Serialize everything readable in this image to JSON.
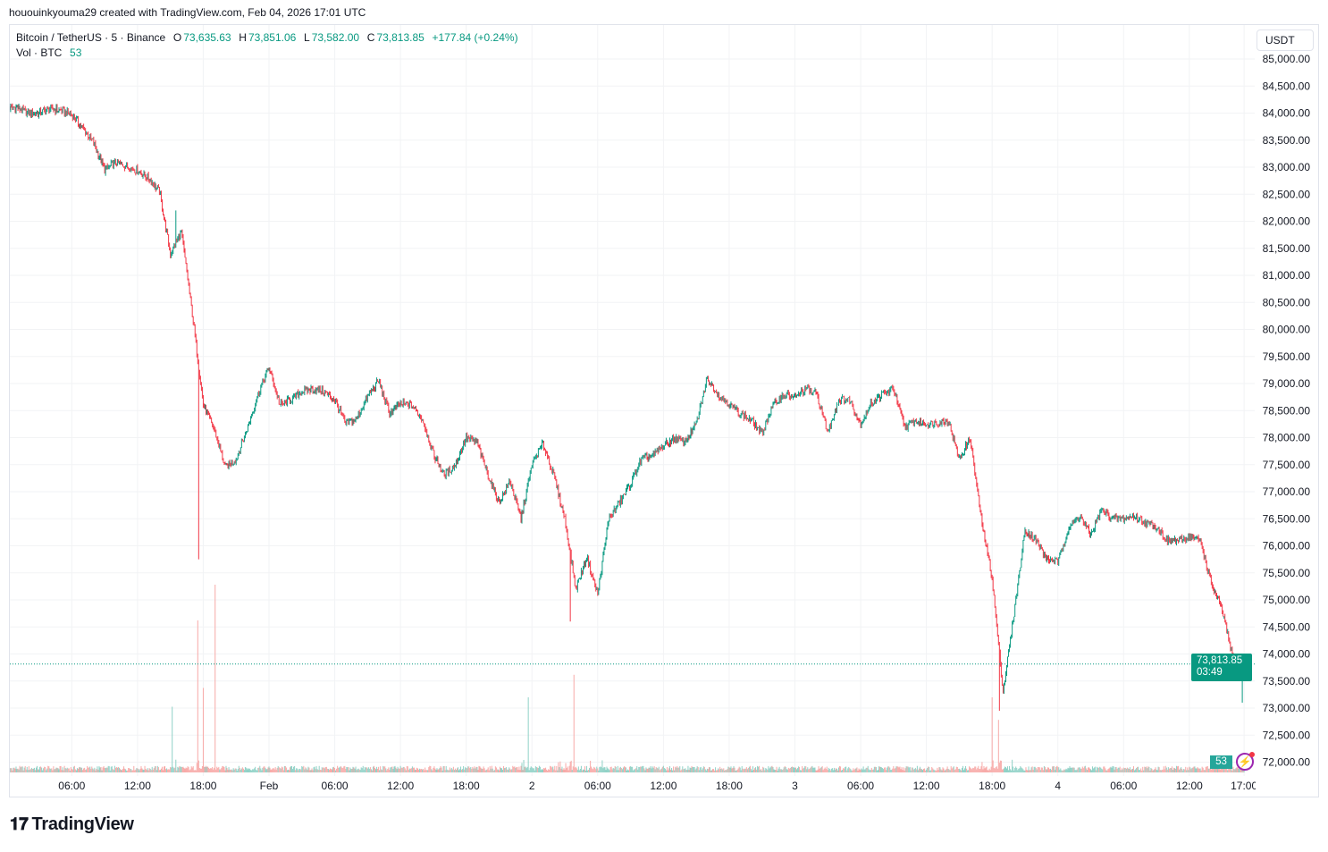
{
  "credit": "hououinkyouma29 created with TradingView.com, Feb 04, 2026 17:01 UTC",
  "legend": {
    "symbol": "Bitcoin / TetherUS · 5 · Binance",
    "o_label": "O",
    "o": "73,635.63",
    "h_label": "H",
    "h": "73,851.06",
    "l_label": "L",
    "l": "73,582.00",
    "c_label": "C",
    "c": "73,813.85",
    "change": "+177.84 (+0.24%)",
    "vol_label": "Vol · BTC",
    "vol": "53"
  },
  "currency": "USDT",
  "last_price": "73,813.85",
  "countdown": "03:49",
  "last_volume": "53",
  "logo_text": "TradingView",
  "colors": {
    "up": "#089981",
    "down": "#f23645",
    "vol_up": "#8fd1c6",
    "vol_down": "#f7a9a7",
    "grid": "#f2f3f5"
  },
  "chart_data": {
    "type": "candlestick",
    "interval": "5m",
    "ylim": [
      72000,
      85000
    ],
    "y_ticks": [
      "85,000.00",
      "84,500.00",
      "84,000.00",
      "83,500.00",
      "83,000.00",
      "82,500.00",
      "82,000.00",
      "81,500.00",
      "81,000.00",
      "80,500.00",
      "80,000.00",
      "79,500.00",
      "79,000.00",
      "78,500.00",
      "78,000.00",
      "77,500.00",
      "77,000.00",
      "76,500.00",
      "76,000.00",
      "75,500.00",
      "75,000.00",
      "74,500.00",
      "74,000.00",
      "73,500.00",
      "73,000.00",
      "72,500.00",
      "72,000.00"
    ],
    "x_ticks": [
      {
        "t": "2026-01-31T06:00Z",
        "label": "06:00"
      },
      {
        "t": "2026-01-31T12:00Z",
        "label": "12:00"
      },
      {
        "t": "2026-01-31T18:00Z",
        "label": "18:00"
      },
      {
        "t": "2026-02-01T00:00Z",
        "label": "Feb"
      },
      {
        "t": "2026-02-01T06:00Z",
        "label": "06:00"
      },
      {
        "t": "2026-02-01T12:00Z",
        "label": "12:00"
      },
      {
        "t": "2026-02-01T18:00Z",
        "label": "18:00"
      },
      {
        "t": "2026-02-02T00:00Z",
        "label": "2"
      },
      {
        "t": "2026-02-02T06:00Z",
        "label": "06:00"
      },
      {
        "t": "2026-02-02T12:00Z",
        "label": "12:00"
      },
      {
        "t": "2026-02-02T18:00Z",
        "label": "18:00"
      },
      {
        "t": "2026-02-03T00:00Z",
        "label": "3"
      },
      {
        "t": "2026-02-03T06:00Z",
        "label": "06:00"
      },
      {
        "t": "2026-02-03T12:00Z",
        "label": "12:00"
      },
      {
        "t": "2026-02-03T18:00Z",
        "label": "18:00"
      },
      {
        "t": "2026-02-04T00:00Z",
        "label": "4"
      },
      {
        "t": "2026-02-04T06:00Z",
        "label": "06:00"
      },
      {
        "t": "2026-02-04T12:00Z",
        "label": "12:00"
      },
      {
        "t": "2026-02-04T17:00Z",
        "label": "17:00"
      }
    ],
    "hourly_closes_start": "2026-01-31T01:00Z",
    "hourly_closes": [
      84100,
      84000,
      84000,
      84080,
      84050,
      83975,
      83720,
      83450,
      82950,
      83080,
      83020,
      82940,
      82800,
      82550,
      81400,
      81800,
      80300,
      78600,
      78160,
      77450,
      77600,
      78160,
      78800,
      79300,
      78600,
      78700,
      78850,
      78900,
      78850,
      78700,
      78250,
      78350,
      78760,
      79050,
      78450,
      78620,
      78600,
      78350,
      77700,
      77300,
      77500,
      78000,
      77900,
      77300,
      76800,
      77200,
      76500,
      77500,
      77900,
      77300,
      76500,
      75200,
      75800,
      75100,
      76500,
      76800,
      77150,
      77600,
      77660,
      77850,
      77980,
      77930,
      78250,
      79100,
      78800,
      78620,
      78450,
      78320,
      78080,
      78600,
      78800,
      78740,
      78900,
      78800,
      78100,
      78700,
      78700,
      78250,
      78650,
      78800,
      78900,
      78200,
      78300,
      78250,
      78280,
      78320,
      77600,
      77990,
      76500,
      75400,
      73300,
      74750,
      76300,
      76100,
      75750,
      75700,
      76340,
      76550,
      76200,
      76670,
      76500,
      76500,
      76550,
      76420,
      76360,
      76090,
      76090,
      76170,
      76100,
      75300,
      74800,
      73900,
      73813.85
    ],
    "wicks": [
      {
        "t": "2026-01-31T15:30Z",
        "high": 82200
      },
      {
        "t": "2026-01-31T17:35Z",
        "low": 75750
      },
      {
        "t": "2026-02-02T03:30Z",
        "low": 74600
      },
      {
        "t": "2026-02-03T18:40Z",
        "low": 72950
      },
      {
        "t": "2026-02-04T16:50Z",
        "low": 73100
      }
    ],
    "last_close": 73813.85,
    "volume_spikes": [
      {
        "t": "2026-01-31T15:10Z",
        "rel": 0.35
      },
      {
        "t": "2026-01-31T17:30Z",
        "rel": 0.81
      },
      {
        "t": "2026-01-31T18:00Z",
        "rel": 0.45
      },
      {
        "t": "2026-01-31T19:05Z",
        "rel": 1.0
      },
      {
        "t": "2026-02-01T23:40Z",
        "rel": 0.4
      },
      {
        "t": "2026-02-02T03:50Z",
        "rel": 0.52
      },
      {
        "t": "2026-02-03T18:00Z",
        "rel": 0.4
      },
      {
        "t": "2026-02-03T18:35Z",
        "rel": 0.28
      }
    ]
  }
}
